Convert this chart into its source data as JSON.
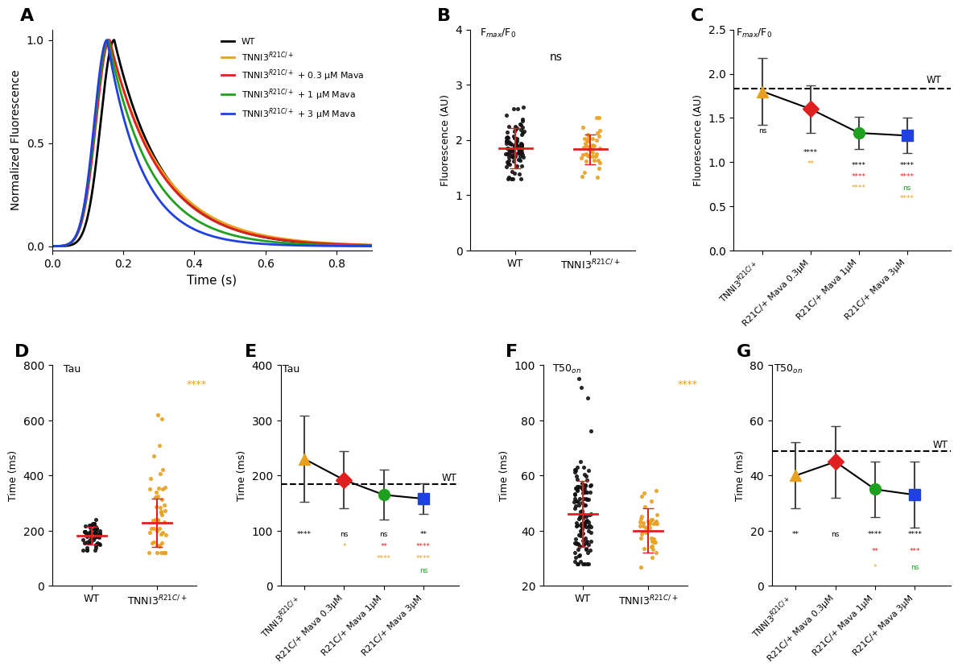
{
  "panel_A": {
    "xlabel": "Time (s)",
    "ylabel": "Normalized Fluorescence",
    "xlim": [
      0.0,
      0.9
    ],
    "ylim": [
      -0.02,
      1.05
    ],
    "xticks": [
      0.0,
      0.2,
      0.4,
      0.6,
      0.8
    ],
    "yticks": [
      0.0,
      0.5,
      1.0
    ],
    "legend_labels": [
      "WT",
      "TNNI3$^{R21C/+}$",
      "TNNI3$^{R21C/+}$ + 0.3 μM Mava",
      "TNNI3$^{R21C/+}$ + 1 μM Mava",
      "TNNI3$^{R21C/+}$ + 3 μM Mava"
    ],
    "colors": [
      "#000000",
      "#E8A020",
      "#E02020",
      "#20A020",
      "#2040E0"
    ],
    "lw": 2.0,
    "peak_ts": [
      0.175,
      0.16,
      0.162,
      0.158,
      0.155
    ],
    "rise_sigs": [
      0.038,
      0.038,
      0.038,
      0.037,
      0.036
    ],
    "decay_taus": [
      0.135,
      0.148,
      0.14,
      0.12,
      0.098
    ]
  },
  "panel_B": {
    "panel_label": "F$_{max}$/F$_0$",
    "ylabel": "Fluorescence (AU)",
    "ylim": [
      0,
      4
    ],
    "yticks": [
      0,
      1,
      2,
      3,
      4
    ],
    "categories": [
      "WT",
      "TNNI3$^{R21C/+}$"
    ],
    "means": [
      1.85,
      1.83
    ],
    "errors": [
      0.37,
      0.27
    ],
    "colors_dot": [
      "#111111",
      "#E8A020"
    ],
    "wt_n": 90,
    "mut_n": 40,
    "wt_mean": 1.85,
    "wt_std": 0.3,
    "mut_mean": 1.82,
    "mut_std": 0.25
  },
  "panel_C": {
    "panel_label": "F$_{max}$/F$_0$",
    "ylabel": "Fluorescence (AU)",
    "ylim": [
      0.0,
      2.5
    ],
    "yticks": [
      0.0,
      0.5,
      1.0,
      1.5,
      2.0,
      2.5
    ],
    "wt_line": 1.83,
    "categories": [
      "TNNI3$^{R21C/+}$",
      "R21C/+ Mava 0.3μM",
      "R21C/+ Mava 1μM",
      "R21C/+ Mava 3μM"
    ],
    "means": [
      1.8,
      1.6,
      1.33,
      1.3
    ],
    "errors": [
      0.38,
      0.27,
      0.18,
      0.2
    ],
    "colors": [
      "#E8A020",
      "#E02020",
      "#20A020",
      "#2040E0"
    ],
    "markers": [
      "^",
      "D",
      "o",
      "s"
    ],
    "ann_C": [
      [
        0,
        0.56,
        "ns",
        "#000000"
      ],
      [
        1,
        0.46,
        "****",
        "#000000"
      ],
      [
        1,
        0.41,
        "**",
        "#E8A020"
      ],
      [
        2,
        0.4,
        "****",
        "#000000"
      ],
      [
        2,
        0.35,
        "****",
        "#E02020"
      ],
      [
        2,
        0.3,
        "****",
        "#E8A020"
      ],
      [
        3,
        0.4,
        "****",
        "#000000"
      ],
      [
        3,
        0.35,
        "****",
        "#E02020"
      ],
      [
        3,
        0.3,
        "ns",
        "#20A020"
      ],
      [
        3,
        0.25,
        "****",
        "#E8A020"
      ]
    ]
  },
  "panel_D": {
    "panel_label": "Tau",
    "ylabel": "Time (ms)",
    "ylim": [
      0,
      800
    ],
    "yticks": [
      0,
      200,
      400,
      600,
      800
    ],
    "categories": [
      "WT",
      "TNNI3$^{R21C/+}$"
    ],
    "means": [
      182,
      228
    ],
    "errors": [
      33,
      88
    ],
    "colors_dot": [
      "#111111",
      "#E8A020"
    ],
    "sig_label": "****",
    "wt_mean": 182,
    "wt_std": 28,
    "wt_n": 55,
    "mut_mean": 228,
    "mut_std": 85,
    "mut_n": 40
  },
  "panel_E": {
    "panel_label": "Tau",
    "ylabel": "Time (ms)",
    "ylim": [
      0,
      400
    ],
    "yticks": [
      0,
      100,
      200,
      300,
      400
    ],
    "wt_line": 185,
    "categories": [
      "TNNI3$^{R21C/+}$",
      "R21C/+ Mava 0.3μM",
      "R21C/+ Mava 1μM",
      "R21C/+ Mava 3μM"
    ],
    "means": [
      230,
      192,
      165,
      158
    ],
    "errors": [
      78,
      52,
      45,
      28
    ],
    "colors": [
      "#E8A020",
      "#E02020",
      "#20A020",
      "#2040E0"
    ],
    "markers": [
      "^",
      "D",
      "o",
      "s"
    ],
    "ann_E": [
      [
        0,
        100,
        "****",
        "#000000"
      ],
      [
        1,
        100,
        "ns",
        "#000000"
      ],
      [
        1,
        78,
        "*",
        "#E8A020"
      ],
      [
        2,
        100,
        "ns",
        "#000000"
      ],
      [
        2,
        78,
        "**",
        "#E02020"
      ],
      [
        2,
        56,
        "****",
        "#E8A020"
      ],
      [
        3,
        100,
        "**",
        "#000000"
      ],
      [
        3,
        78,
        "****",
        "#E02020"
      ],
      [
        3,
        56,
        "****",
        "#E8A020"
      ],
      [
        3,
        34,
        "ns",
        "#20A020"
      ]
    ]
  },
  "panel_F": {
    "panel_label": "T50$_{on}$",
    "ylabel": "Time (ms)",
    "ylim": [
      20,
      100
    ],
    "yticks": [
      20,
      40,
      60,
      80,
      100
    ],
    "categories": [
      "WT",
      "TNNI3$^{R21C/+}$"
    ],
    "means": [
      46,
      40
    ],
    "errors": [
      12,
      8
    ],
    "colors_dot": [
      "#111111",
      "#E8A020"
    ],
    "sig_label": "****",
    "wt_mean": 46,
    "wt_std": 10,
    "wt_n": 120,
    "mut_mean": 40,
    "mut_std": 7,
    "mut_n": 40
  },
  "panel_G": {
    "panel_label": "T50$_{on}$",
    "ylabel": "Time (ms)",
    "ylim": [
      0,
      80
    ],
    "yticks": [
      0,
      20,
      40,
      60,
      80
    ],
    "wt_line": 49,
    "categories": [
      "TNNI3$^{R21C/+}$",
      "R21C/+ Mava 0.3μM",
      "R21C/+ Mava 1μM",
      "R21C/+ Mava 3μM"
    ],
    "means": [
      40,
      45,
      35,
      33
    ],
    "errors": [
      12,
      13,
      10,
      12
    ],
    "colors": [
      "#E8A020",
      "#E02020",
      "#20A020",
      "#2040E0"
    ],
    "markers": [
      "^",
      "D",
      "o",
      "s"
    ],
    "ann_G": [
      [
        0,
        20,
        "**",
        "#000000"
      ],
      [
        1,
        20,
        "ns",
        "#000000"
      ],
      [
        2,
        20,
        "****",
        "#000000"
      ],
      [
        2,
        14,
        "**",
        "#E02020"
      ],
      [
        2,
        8,
        "*",
        "#E8A020"
      ],
      [
        3,
        20,
        "****",
        "#000000"
      ],
      [
        3,
        14,
        "***",
        "#E02020"
      ],
      [
        3,
        8,
        "ns",
        "#20A020"
      ]
    ]
  }
}
